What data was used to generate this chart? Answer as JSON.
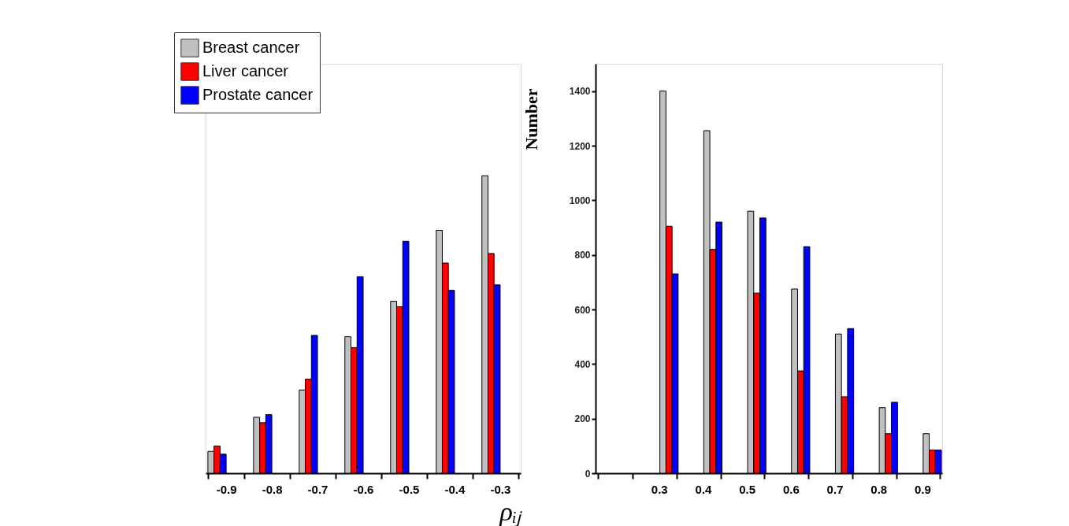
{
  "chart_data": [
    {
      "type": "bar",
      "categories": [
        "-0.9",
        "-0.8",
        "-0.7",
        "-0.6",
        "-0.5",
        "-0.4",
        "-0.3"
      ],
      "xlabel": "ρᵢⱼ",
      "ylim": [
        0,
        1500
      ],
      "tick_labels": "x",
      "legend": "top left",
      "grid": false,
      "series": [
        {
          "name": "Breast cancer",
          "color": "#c0c0c0",
          "values": [
            80,
            205,
            305,
            500,
            630,
            890,
            1090
          ]
        },
        {
          "name": "Liver cancer",
          "color": "#ff0000",
          "values": [
            100,
            185,
            345,
            460,
            610,
            770,
            805
          ]
        },
        {
          "name": "Prostate cancer",
          "color": "#0000ff",
          "values": [
            70,
            215,
            505,
            720,
            850,
            670,
            690
          ]
        }
      ]
    },
    {
      "type": "bar",
      "categories": [
        null,
        "0.3",
        "0.4",
        "0.5",
        "0.6",
        "0.7",
        "0.8",
        "0.9"
      ],
      "ylabel": "Number",
      "ylim": [
        0,
        1500
      ],
      "yticks": [
        0,
        200,
        400,
        600,
        800,
        1000,
        1200,
        1400
      ],
      "grid": false,
      "series": [
        {
          "color": "#c0c0c0",
          "values": [
            null,
            1400,
            1255,
            960,
            675,
            510,
            240,
            145
          ]
        },
        {
          "color": "#ff0000",
          "values": [
            null,
            905,
            820,
            660,
            375,
            280,
            145,
            85
          ]
        },
        {
          "color": "#0000ff",
          "values": [
            null,
            730,
            920,
            935,
            830,
            530,
            260,
            85
          ]
        }
      ]
    }
  ]
}
